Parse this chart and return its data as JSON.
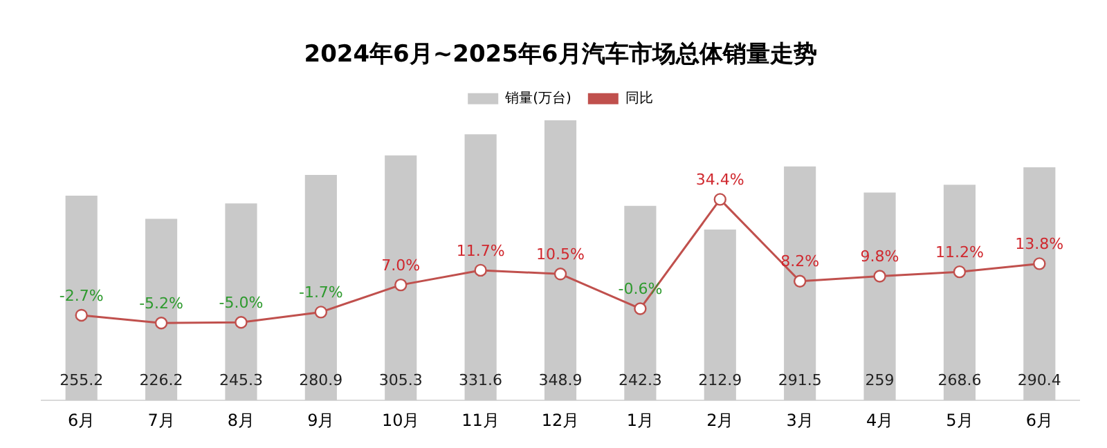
{
  "chart_data": {
    "type": "bar",
    "title": "2024年6月~2025年6月汽车市场总体销量走势",
    "categories": [
      "6月",
      "7月",
      "8月",
      "9月",
      "10月",
      "11月",
      "12月",
      "1月",
      "2月",
      "3月",
      "4月",
      "5月",
      "6月"
    ],
    "series": [
      {
        "name": "销量(万台)",
        "color": "#c9c9c9",
        "values": [
          255.2,
          226.2,
          245.3,
          280.9,
          305.3,
          331.6,
          348.9,
          242.3,
          212.9,
          291.5,
          259,
          268.6,
          290.4
        ],
        "value_labels": [
          "255.2",
          "226.2",
          "245.3",
          "280.9",
          "305.3",
          "331.6",
          "348.9",
          "242.3",
          "212.9",
          "291.5",
          "259",
          "268.6",
          "290.4"
        ]
      },
      {
        "name": "同比",
        "type": "line",
        "axis": "y2",
        "color": "#c0504d",
        "values": [
          -2.7,
          -5.2,
          -5.0,
          -1.7,
          7.0,
          11.7,
          10.5,
          -0.6,
          34.4,
          8.2,
          9.8,
          11.2,
          13.8
        ],
        "value_labels": [
          "-2.7%",
          "-5.2%",
          "-5.0%",
          "-1.7%",
          "7.0%",
          "11.7%",
          "10.5%",
          "-0.6%",
          "34.4%",
          "8.2%",
          "9.8%",
          "11.2%",
          "13.8%"
        ]
      }
    ],
    "tick_labels": "x",
    "legend": "top",
    "marker": "circle",
    "line_style": "solid",
    "grid": false
  }
}
